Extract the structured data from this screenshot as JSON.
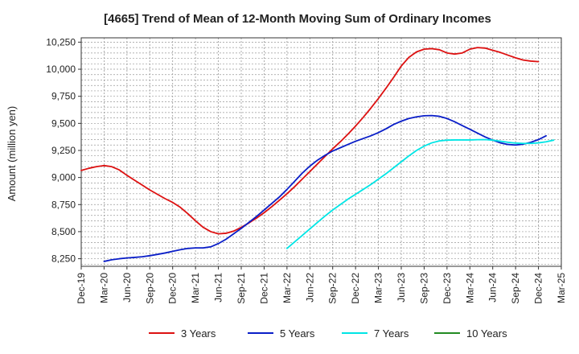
{
  "chart_data": {
    "type": "line",
    "title": "[4665]  Trend of Mean of 12-Month Moving Sum of Ordinary Incomes",
    "xlabel": "",
    "ylabel": "Amount (million yen)",
    "ylim": [
      8180,
      10290
    ],
    "y_ticks": [
      8250,
      8500,
      8750,
      9000,
      9250,
      9500,
      9750,
      10000,
      10250
    ],
    "y_tick_labels": [
      "8,250",
      "8,500",
      "8,750",
      "9,000",
      "9,250",
      "9,500",
      "9,750",
      "10,000",
      "10,250"
    ],
    "x_tick_labels": [
      "Dec-19",
      "Mar-20",
      "Jun-20",
      "Sep-20",
      "Dec-20",
      "Mar-21",
      "Jun-21",
      "Sep-21",
      "Dec-21",
      "Mar-22",
      "Jun-22",
      "Sep-22",
      "Dec-22",
      "Mar-23",
      "Jun-23",
      "Sep-23",
      "Dec-23",
      "Mar-24",
      "Jun-24",
      "Sep-24",
      "Dec-24",
      "Mar-25"
    ],
    "grid": true,
    "legend_position": "bottom",
    "series": [
      {
        "name": "3 Years",
        "color": "#dd1111",
        "start_month": 0,
        "values": [
          9065,
          9085,
          9100,
          9110,
          9100,
          9070,
          9020,
          8975,
          8930,
          8885,
          8845,
          8805,
          8770,
          8725,
          8665,
          8600,
          8540,
          8500,
          8480,
          8485,
          8505,
          8540,
          8580,
          8625,
          8675,
          8730,
          8790,
          8850,
          8915,
          8985,
          9055,
          9125,
          9195,
          9265,
          9330,
          9400,
          9475,
          9555,
          9640,
          9730,
          9825,
          9925,
          10030,
          10110,
          10160,
          10185,
          10190,
          10180,
          10150,
          10140,
          10150,
          10185,
          10200,
          10195,
          10175,
          10155,
          10130,
          10105,
          10085,
          10075,
          10070
        ]
      },
      {
        "name": "5 Years",
        "color": "#0a1ec8",
        "start_month": 3,
        "values": [
          8225,
          8240,
          8250,
          8257,
          8262,
          8268,
          8278,
          8290,
          8303,
          8318,
          8333,
          8345,
          8350,
          8350,
          8360,
          8390,
          8430,
          8480,
          8530,
          8585,
          8640,
          8700,
          8760,
          8820,
          8890,
          8965,
          9040,
          9105,
          9160,
          9205,
          9245,
          9275,
          9305,
          9335,
          9360,
          9385,
          9415,
          9450,
          9490,
          9520,
          9545,
          9560,
          9570,
          9572,
          9565,
          9545,
          9515,
          9480,
          9445,
          9410,
          9375,
          9345,
          9320,
          9305,
          9300,
          9308,
          9325,
          9350,
          9385
        ]
      },
      {
        "name": "7 Years",
        "color": "#00e5e5",
        "start_month": 27,
        "values": [
          8345,
          8405,
          8465,
          8525,
          8585,
          8645,
          8700,
          8750,
          8800,
          8845,
          8890,
          8935,
          8985,
          9035,
          9090,
          9145,
          9200,
          9250,
          9290,
          9320,
          9338,
          9345,
          9347,
          9347,
          9347,
          9349,
          9350,
          9345,
          9335,
          9325,
          9318,
          9315,
          9315,
          9320,
          9330,
          9345
        ]
      },
      {
        "name": "10 Years",
        "color": "#228b22",
        "start_month": 0,
        "values": []
      }
    ]
  }
}
